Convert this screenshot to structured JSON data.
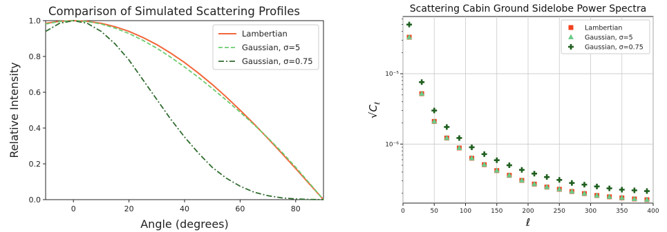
{
  "chart_data": [
    {
      "type": "line",
      "title": "Comparison of Simulated Scattering Profiles",
      "xlabel": "Angle (degrees)",
      "ylabel": "Relative Intensity",
      "xlim": [
        -10,
        90
      ],
      "ylim": [
        0,
        1.0
      ],
      "xticks": [
        "0",
        "20",
        "40",
        "60",
        "80"
      ],
      "yticks": [
        "0.0",
        "0.2",
        "0.4",
        "0.6",
        "0.8",
        "1.0"
      ],
      "grid": false,
      "legend_position": "top-right",
      "series": [
        {
          "name": "Lambertian",
          "color": "#f2663a",
          "style": "solid",
          "x": [
            -10,
            -5,
            0,
            5,
            10,
            15,
            20,
            25,
            30,
            35,
            40,
            45,
            50,
            55,
            60,
            65,
            70,
            75,
            80,
            85,
            90
          ],
          "y": [
            0.985,
            0.996,
            1.0,
            0.996,
            0.985,
            0.966,
            0.94,
            0.906,
            0.866,
            0.819,
            0.766,
            0.707,
            0.643,
            0.574,
            0.5,
            0.423,
            0.342,
            0.259,
            0.174,
            0.087,
            0.0
          ]
        },
        {
          "name": "Gaussian, σ=5",
          "color": "#6ccb6e",
          "style": "dashed",
          "x": [
            -10,
            -5,
            0,
            5,
            10,
            15,
            20,
            25,
            30,
            35,
            40,
            45,
            50,
            55,
            60,
            65,
            70,
            75,
            80,
            85,
            90
          ],
          "y": [
            0.981,
            0.995,
            1.0,
            0.995,
            0.981,
            0.958,
            0.928,
            0.89,
            0.846,
            0.796,
            0.741,
            0.683,
            0.621,
            0.556,
            0.489,
            0.419,
            0.345,
            0.266,
            0.181,
            0.091,
            0.0
          ]
        },
        {
          "name": "Gaussian, σ=0.75",
          "color": "#2f6b2f",
          "style": "dashdot",
          "x": [
            -10,
            -5,
            0,
            5,
            10,
            15,
            20,
            25,
            30,
            35,
            40,
            45,
            50,
            55,
            60,
            65,
            70,
            75,
            80,
            85,
            90
          ],
          "y": [
            0.94,
            0.985,
            1.0,
            0.985,
            0.94,
            0.87,
            0.78,
            0.67,
            0.56,
            0.45,
            0.35,
            0.26,
            0.18,
            0.12,
            0.075,
            0.042,
            0.022,
            0.01,
            0.004,
            0.001,
            0.0
          ]
        }
      ]
    },
    {
      "type": "scatter",
      "title": "Scattering Cabin Ground Sidelobe Power Spectra",
      "xlabel": "ℓ",
      "ylabel": "√C",
      "ylabel_sub": "ℓ",
      "xlim": [
        0,
        400
      ],
      "ylim": [
        1.45e-07,
        6.5e-05
      ],
      "yscale": "log",
      "xticks": [
        "0",
        "50",
        "100",
        "150",
        "200",
        "250",
        "300",
        "350",
        "400"
      ],
      "yticks": [
        {
          "value": 1e-05,
          "label": "10⁻⁵"
        },
        {
          "value": 1e-06,
          "label": "10⁻⁶"
        }
      ],
      "grid": true,
      "legend_position": "top-right",
      "series": [
        {
          "name": "Lambertian",
          "marker": "square",
          "color": "#f2401e",
          "x": [
            10,
            30,
            50,
            70,
            90,
            110,
            130,
            150,
            170,
            190,
            210,
            230,
            250,
            270,
            290,
            310,
            330,
            350,
            370,
            390
          ],
          "y": [
            3.3e-05,
            5.2e-06,
            2.1e-06,
            1.22e-06,
            8.8e-07,
            6.3e-07,
            5.1e-07,
            4.2e-07,
            3.6e-07,
            3.05e-07,
            2.7e-07,
            2.45e-07,
            2.28e-07,
            2.12e-07,
            1.98e-07,
            1.86e-07,
            1.78e-07,
            1.72e-07,
            1.66e-07,
            1.62e-07
          ]
        },
        {
          "name": "Gaussian, σ=5",
          "marker": "triangle",
          "color": "#6ccb8a",
          "x": [
            10,
            30,
            50,
            70,
            90,
            110,
            130,
            150,
            170,
            190,
            210,
            230,
            250,
            270,
            290,
            310,
            330,
            350,
            370,
            390
          ],
          "y": [
            3.3e-05,
            5.2e-06,
            2.1e-06,
            1.22e-06,
            8.8e-07,
            6.3e-07,
            5.1e-07,
            4.2e-07,
            3.6e-07,
            3.05e-07,
            2.7e-07,
            2.45e-07,
            2.28e-07,
            2.12e-07,
            1.98e-07,
            1.86e-07,
            1.78e-07,
            1.72e-07,
            1.66e-07,
            1.62e-07
          ]
        },
        {
          "name": "Gaussian, σ=0.75",
          "marker": "plus",
          "color": "#1e5e1e",
          "x": [
            10,
            30,
            50,
            70,
            90,
            110,
            130,
            150,
            170,
            190,
            210,
            230,
            250,
            270,
            290,
            310,
            330,
            350,
            370,
            390
          ],
          "y": [
            5e-05,
            7.6e-06,
            3e-06,
            1.75e-06,
            1.22e-06,
            9e-07,
            7.2e-07,
            5.9e-07,
            5e-07,
            4.3e-07,
            3.8e-07,
            3.4e-07,
            3.1e-07,
            2.8e-07,
            2.65e-07,
            2.5e-07,
            2.35e-07,
            2.25e-07,
            2.2e-07,
            2.15e-07
          ]
        }
      ]
    }
  ]
}
